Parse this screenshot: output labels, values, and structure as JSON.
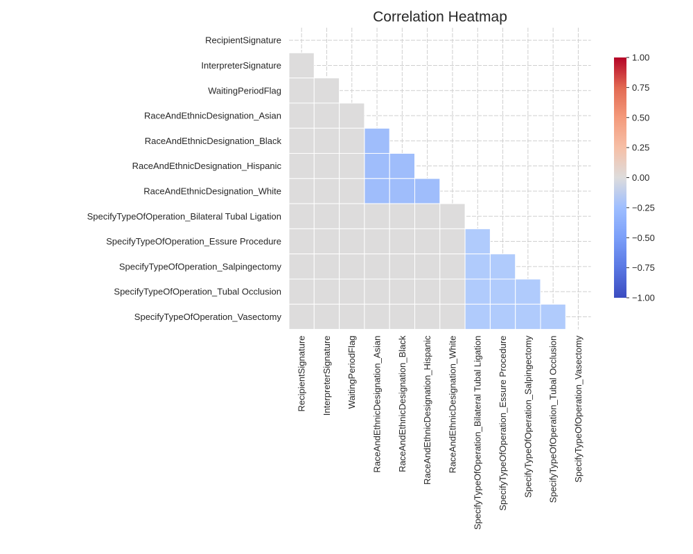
{
  "chart_data": {
    "type": "heatmap",
    "title": "Correlation Heatmap",
    "variables": [
      "RecipientSignature",
      "InterpreterSignature",
      "WaitingPeriodFlag",
      "RaceAndEthnicDesignation_Asian",
      "RaceAndEthnicDesignation_Black",
      "RaceAndEthnicDesignation_Hispanic",
      "RaceAndEthnicDesignation_White",
      "SpecifyTypeOfOperation_Bilateral Tubal Ligation",
      "SpecifyTypeOfOperation_Essure Procedure",
      "SpecifyTypeOfOperation_Salpingectomy",
      "SpecifyTypeOfOperation_Tubal Occlusion",
      "SpecifyTypeOfOperation_Vasectomy"
    ],
    "mask": "upper-triangle-including-diagonal",
    "lower_triangle_rows": [
      [],
      [
        0
      ],
      [
        0,
        0
      ],
      [
        0,
        0,
        0
      ],
      [
        0,
        0,
        0,
        -0.33
      ],
      [
        0,
        0,
        0,
        -0.33,
        -0.33
      ],
      [
        0,
        0,
        0,
        -0.33,
        -0.33,
        -0.33
      ],
      [
        0,
        0,
        0,
        0,
        0,
        0,
        0
      ],
      [
        0,
        0,
        0,
        0,
        0,
        0,
        0,
        -0.25
      ],
      [
        0,
        0,
        0,
        0,
        0,
        0,
        0,
        -0.25,
        -0.25
      ],
      [
        0,
        0,
        0,
        0,
        0,
        0,
        0,
        -0.25,
        -0.25,
        -0.25
      ],
      [
        0,
        0,
        0,
        0,
        0,
        0,
        0,
        -0.25,
        -0.25,
        -0.25,
        -0.25
      ]
    ],
    "colormap": "coolwarm",
    "color_range": [
      -1.0,
      1.0
    ],
    "colorbar_ticks": [
      "1.00",
      "0.75",
      "0.50",
      "0.25",
      "0.00",
      "−0.25",
      "−0.50",
      "−0.75",
      "−1.00"
    ],
    "colorbar_tick_values": [
      1.0,
      0.75,
      0.5,
      0.25,
      0.0,
      -0.25,
      -0.5,
      -0.75,
      -1.0
    ],
    "grid": true,
    "legend": "colorbar-right"
  }
}
